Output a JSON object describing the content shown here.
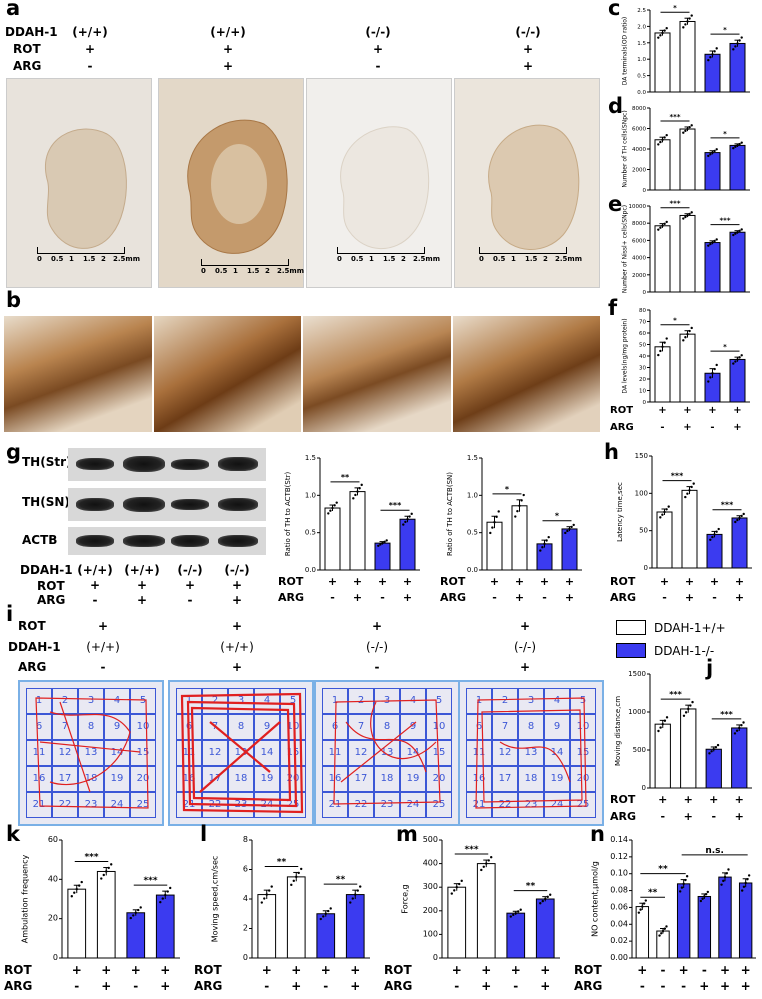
{
  "panels": {
    "a": "a",
    "b": "b",
    "c": "c",
    "d": "d",
    "e": "e",
    "f": "f",
    "g": "g",
    "h": "h",
    "i": "i",
    "j": "j",
    "k": "k",
    "l": "l",
    "m": "m",
    "n": "n"
  },
  "panel_a": {
    "row_labels": [
      "DDAH-1",
      "ROT",
      "ARG"
    ],
    "columns": [
      {
        "ddah": "(+/+)",
        "rot": "+",
        "arg": "-"
      },
      {
        "ddah": "(+/+)",
        "rot": "+",
        "arg": "+"
      },
      {
        "ddah": "(-/-)",
        "rot": "+",
        "arg": "-"
      },
      {
        "ddah": "(-/-)",
        "rot": "+",
        "arg": "+"
      }
    ],
    "scale_ticks": [
      "0",
      "0.5",
      "1",
      "1.5",
      "2",
      "2.5mm"
    ]
  },
  "panel_g": {
    "blot_labels": [
      "TH(Str)",
      "TH(SN)",
      "ACTB"
    ],
    "row_labels": [
      "DDAH-1",
      "ROT",
      "ARG"
    ],
    "ddah": [
      "(+/+)",
      "(+/+)",
      "(-/-)",
      "(-/-)"
    ],
    "rot": [
      "+",
      "+",
      "+",
      "+"
    ],
    "arg": [
      "-",
      "+",
      "-",
      "+"
    ]
  },
  "panel_i": {
    "row_labels": [
      "ROT",
      "DDAH-1",
      "ARG"
    ],
    "rot": [
      "+",
      "+",
      "+",
      "+"
    ],
    "ddah": [
      "(+/+)",
      "(+/+)",
      "(-/-)",
      "(-/-)"
    ],
    "arg": [
      "-",
      "+",
      "-",
      "+"
    ],
    "cells": [
      "1",
      "2",
      "3",
      "4",
      "5",
      "6",
      "7",
      "8",
      "9",
      "10",
      "11",
      "12",
      "13",
      "14",
      "15",
      "16",
      "17",
      "18",
      "19",
      "20",
      "21",
      "22",
      "23",
      "24",
      "25"
    ]
  },
  "legend": {
    "items": [
      {
        "label": "DDAH-1+/+",
        "color": "#ffffff"
      },
      {
        "label": "DDAH-1-/-",
        "color": "#3b3bf0"
      }
    ]
  },
  "colors": {
    "wt": "#ffffff",
    "ko": "#3b3bf0",
    "photo_bg": "#e6e1da",
    "stain": "#b07a45",
    "path": "#e02020",
    "maze_line": "#3c57d6"
  },
  "chart_data": [
    {
      "id": "c",
      "type": "bar",
      "ylabel": "DA terminals(OD ratio)",
      "ylim": [
        0,
        2.5
      ],
      "yticks": [
        "0.0",
        "0.5",
        "1.0",
        "1.5",
        "2.0",
        "2.5"
      ],
      "values": [
        1.8,
        2.15,
        1.15,
        1.48
      ],
      "errors": [
        0.08,
        0.1,
        0.1,
        0.1
      ],
      "sig": [
        {
          "from": 0,
          "to": 1,
          "text": "*"
        },
        {
          "from": 2,
          "to": 3,
          "text": "*"
        }
      ],
      "rows": [
        [
          "+",
          "+",
          "+",
          "+"
        ],
        [
          "-",
          "+",
          "-",
          "+"
        ]
      ],
      "row_names": []
    },
    {
      "id": "d",
      "type": "bar",
      "ylabel": "Number of TH cells(SNpc)",
      "ylim": [
        0,
        8000
      ],
      "yticks": [
        "0",
        "2000",
        "4000",
        "6000",
        "8000"
      ],
      "values": [
        4900,
        5950,
        3650,
        4350
      ],
      "errors": [
        250,
        200,
        180,
        150
      ],
      "sig": [
        {
          "from": 0,
          "to": 1,
          "text": "***"
        },
        {
          "from": 2,
          "to": 3,
          "text": "*"
        }
      ],
      "rows": [],
      "row_names": []
    },
    {
      "id": "e",
      "type": "bar",
      "ylabel": "Number of Nissl+ cells(SNpc)",
      "ylim": [
        0,
        10000
      ],
      "yticks": [
        "0",
        "2000",
        "4000",
        "6000",
        "8000",
        "10000"
      ],
      "values": [
        7700,
        8900,
        5750,
        6950
      ],
      "errors": [
        250,
        200,
        200,
        180
      ],
      "sig": [
        {
          "from": 0,
          "to": 1,
          "text": "***"
        },
        {
          "from": 2,
          "to": 3,
          "text": "***"
        }
      ],
      "rows": [],
      "row_names": []
    },
    {
      "id": "f",
      "type": "bar",
      "ylabel": "DA levels(ng/mg protein)",
      "ylim": [
        0,
        80
      ],
      "yticks": [
        "0",
        "10",
        "20",
        "30",
        "40",
        "50",
        "60",
        "70",
        "80"
      ],
      "values": [
        48,
        59,
        25,
        37
      ],
      "errors": [
        4,
        3,
        4,
        2
      ],
      "sig": [
        {
          "from": 0,
          "to": 1,
          "text": "*"
        },
        {
          "from": 2,
          "to": 3,
          "text": "*"
        }
      ],
      "rows": [
        [
          "+",
          "+",
          "+",
          "+"
        ],
        [
          "-",
          "+",
          "-",
          "+"
        ]
      ],
      "row_names": [
        "ROT",
        "ARG"
      ]
    },
    {
      "id": "g1",
      "type": "bar",
      "ylabel": "Ratio of TH to ACTB(Str)",
      "ylim": [
        0,
        1.5
      ],
      "yticks": [
        "0.0",
        "0.5",
        "1.0",
        "1.5"
      ],
      "values": [
        0.83,
        1.05,
        0.36,
        0.68
      ],
      "errors": [
        0.04,
        0.05,
        0.02,
        0.04
      ],
      "sig": [
        {
          "from": 0,
          "to": 1,
          "text": "**"
        },
        {
          "from": 2,
          "to": 3,
          "text": "***"
        }
      ],
      "rows": [
        [
          "+",
          "+",
          "+",
          "+"
        ],
        [
          "-",
          "+",
          "-",
          "+"
        ]
      ],
      "row_names": [
        "ROT",
        "ARG"
      ]
    },
    {
      "id": "g2",
      "type": "bar",
      "ylabel": "Ratio of TH to ACTB(SN)",
      "ylim": [
        0,
        1.5
      ],
      "yticks": [
        "0.0",
        "0.5",
        "1.0",
        "1.5"
      ],
      "values": [
        0.64,
        0.86,
        0.35,
        0.55
      ],
      "errors": [
        0.08,
        0.08,
        0.05,
        0.03
      ],
      "sig": [
        {
          "from": 0,
          "to": 1,
          "text": "*"
        },
        {
          "from": 2,
          "to": 3,
          "text": "*"
        }
      ],
      "rows": [
        [
          "+",
          "+",
          "+",
          "+"
        ],
        [
          "-",
          "+",
          "-",
          "+"
        ]
      ],
      "row_names": [
        "ROT",
        "ARG"
      ]
    },
    {
      "id": "h",
      "type": "bar",
      "ylabel": "Latency time,sec",
      "ylim": [
        0,
        150
      ],
      "yticks": [
        "0",
        "50",
        "100",
        "150"
      ],
      "values": [
        75,
        104,
        45,
        67
      ],
      "errors": [
        4,
        5,
        4,
        3
      ],
      "sig": [
        {
          "from": 0,
          "to": 1,
          "text": "***"
        },
        {
          "from": 2,
          "to": 3,
          "text": "***"
        }
      ],
      "rows": [
        [
          "+",
          "+",
          "+",
          "+"
        ],
        [
          "-",
          "+",
          "-",
          "+"
        ]
      ],
      "row_names": [
        "ROT",
        "ARG"
      ]
    },
    {
      "id": "j",
      "type": "bar",
      "ylabel": "Moving distance,cm",
      "ylim": [
        0,
        1500
      ],
      "yticks": [
        "0",
        "500",
        "1000",
        "1500"
      ],
      "values": [
        840,
        1040,
        510,
        790
      ],
      "errors": [
        50,
        50,
        30,
        40
      ],
      "sig": [
        {
          "from": 0,
          "to": 1,
          "text": "***"
        },
        {
          "from": 2,
          "to": 3,
          "text": "***"
        }
      ],
      "rows": [
        [
          "+",
          "+",
          "+",
          "+"
        ],
        [
          "-",
          "+",
          "-",
          "+"
        ]
      ],
      "row_names": [
        "ROT",
        "ARG"
      ]
    },
    {
      "id": "k",
      "type": "bar",
      "ylabel": "Ambulation frequency",
      "ylim": [
        0,
        60
      ],
      "yticks": [
        "0",
        "20",
        "40",
        "60"
      ],
      "values": [
        35,
        44,
        23,
        32
      ],
      "errors": [
        2,
        2,
        1.5,
        2
      ],
      "sig": [
        {
          "from": 0,
          "to": 1,
          "text": "***"
        },
        {
          "from": 2,
          "to": 3,
          "text": "***"
        }
      ],
      "rows": [
        [
          "+",
          "+",
          "+",
          "+"
        ],
        [
          "-",
          "+",
          "-",
          "+"
        ]
      ],
      "row_names": [
        "ROT",
        "ARG"
      ]
    },
    {
      "id": "l",
      "type": "bar",
      "ylabel": "Moving speed,cm/sec",
      "ylim": [
        0,
        8
      ],
      "yticks": [
        "0",
        "2",
        "4",
        "6",
        "8"
      ],
      "values": [
        4.3,
        5.5,
        3.0,
        4.3
      ],
      "errors": [
        0.3,
        0.3,
        0.2,
        0.3
      ],
      "sig": [
        {
          "from": 0,
          "to": 1,
          "text": "**"
        },
        {
          "from": 2,
          "to": 3,
          "text": "**"
        }
      ],
      "rows": [
        [
          "+",
          "+",
          "+",
          "+"
        ],
        [
          "-",
          "+",
          "-",
          "+"
        ]
      ],
      "row_names": [
        "ROT",
        "ARG"
      ]
    },
    {
      "id": "m",
      "type": "bar",
      "ylabel": "Force,g",
      "ylim": [
        0,
        500
      ],
      "yticks": [
        "0",
        "100",
        "200",
        "300",
        "400",
        "500"
      ],
      "values": [
        300,
        400,
        190,
        250
      ],
      "errors": [
        15,
        15,
        8,
        10
      ],
      "sig": [
        {
          "from": 0,
          "to": 1,
          "text": "***"
        },
        {
          "from": 2,
          "to": 3,
          "text": "**"
        }
      ],
      "rows": [
        [
          "+",
          "+",
          "+",
          "+"
        ],
        [
          "-",
          "+",
          "-",
          "+"
        ]
      ],
      "row_names": [
        "ROT",
        "ARG"
      ]
    },
    {
      "id": "n",
      "type": "bar",
      "ylabel": "NO content,μmol/g",
      "ylim": [
        0,
        0.14
      ],
      "yticks": [
        "0.00",
        "0.02",
        "0.04",
        "0.06",
        "0.08",
        "0.10",
        "0.12",
        "0.14"
      ],
      "values": [
        0.061,
        0.032,
        0.088,
        0.073,
        0.096,
        0.089
      ],
      "errors": [
        0.004,
        0.003,
        0.005,
        0.003,
        0.005,
        0.005
      ],
      "groups": [
        "wt",
        "wt",
        "ko",
        "ko",
        "ko",
        "ko"
      ],
      "sig": [
        {
          "from": 0,
          "to": 1,
          "text": "**"
        },
        {
          "from": 0,
          "to": 2,
          "text": "**"
        },
        {
          "from": 2,
          "to": 5,
          "text": "n.s."
        }
      ],
      "rows": [
        [
          "+",
          "-",
          "+",
          "-",
          "+",
          "+"
        ],
        [
          "-",
          "-",
          "-",
          "+",
          "+",
          "+"
        ]
      ],
      "row_names": [
        "ROT",
        "ARG"
      ]
    }
  ]
}
